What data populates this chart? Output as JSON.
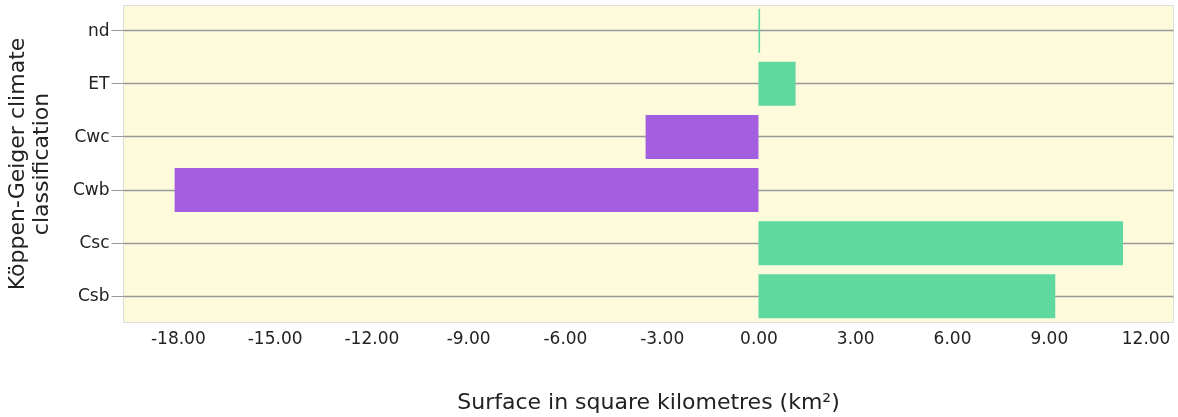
{
  "chart_data": {
    "type": "bar",
    "orientation": "horizontal",
    "categories": [
      "nd",
      "ET",
      "Cwc",
      "Cwb",
      "Csc",
      "Csb"
    ],
    "values": [
      0.05,
      1.15,
      -3.5,
      -18.1,
      11.3,
      9.2
    ],
    "colors": [
      "#5fd9a0",
      "#5fd9a0",
      "#a45fe0",
      "#a45fe0",
      "#5fd9a0",
      "#5fd9a0"
    ],
    "xlabel": "Surface in square kilometres (km²)",
    "ylabel": "Köppen-Geiger climate classification",
    "xlim": [
      -19.7,
      12.85
    ],
    "xticks": [
      {
        "value": -18,
        "label": "-18.00"
      },
      {
        "value": -15,
        "label": "-15.00"
      },
      {
        "value": -12,
        "label": "-12.00"
      },
      {
        "value": -9,
        "label": "-9.00"
      },
      {
        "value": -6,
        "label": "-6.00"
      },
      {
        "value": -3,
        "label": "-3.00"
      },
      {
        "value": 0,
        "label": "0.00"
      },
      {
        "value": 3,
        "label": "3.00"
      },
      {
        "value": 6,
        "label": "6.00"
      },
      {
        "value": 9,
        "label": "9.00"
      },
      {
        "value": 12,
        "label": "12.00"
      }
    ],
    "grid": "y"
  }
}
